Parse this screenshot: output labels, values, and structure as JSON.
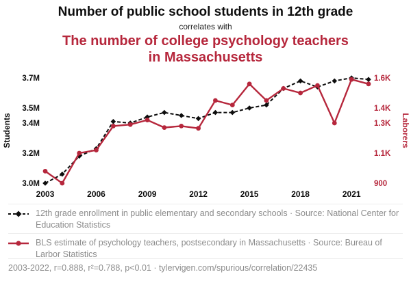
{
  "header": {
    "title_black": "Number of public school students in 12th grade",
    "connector": "correlates with",
    "title_red": "The number of college psychology teachers in Massachusetts"
  },
  "colors": {
    "red": "#b6273c",
    "black": "#0d0d0d",
    "legend_gray": "#8c8c8c"
  },
  "chart_data": {
    "type": "line",
    "x": [
      2003,
      2004,
      2005,
      2006,
      2007,
      2008,
      2009,
      2010,
      2011,
      2012,
      2013,
      2014,
      2015,
      2016,
      2017,
      2018,
      2019,
      2020,
      2021,
      2022
    ],
    "x_ticks": [
      2003,
      2006,
      2009,
      2012,
      2015,
      2018,
      2021
    ],
    "left_axis": {
      "label": "Students",
      "min": 3.0,
      "max": 3.7,
      "ticks": [
        {
          "v": 3.0,
          "label": "3.0M"
        },
        {
          "v": 3.2,
          "label": "3.2M"
        },
        {
          "v": 3.4,
          "label": "3.4M"
        },
        {
          "v": 3.5,
          "label": "3.5M"
        },
        {
          "v": 3.7,
          "label": "3.7M"
        }
      ]
    },
    "right_axis": {
      "label": "Laborers",
      "min": 900,
      "max": 1600,
      "ticks": [
        {
          "v": 900,
          "label": "900"
        },
        {
          "v": 1100,
          "label": "1.1K"
        },
        {
          "v": 1300,
          "label": "1.3K"
        },
        {
          "v": 1400,
          "label": "1.4K"
        },
        {
          "v": 1600,
          "label": "1.6K"
        }
      ]
    },
    "series": [
      {
        "name": "12th grade enrollment in public elementary and secondary schools",
        "axis": "left",
        "style": "dashed-diamond",
        "color": "#0d0d0d",
        "values": [
          3.0,
          3.06,
          3.18,
          3.23,
          3.41,
          3.4,
          3.44,
          3.47,
          3.45,
          3.43,
          3.47,
          3.47,
          3.5,
          3.52,
          3.63,
          3.68,
          3.64,
          3.68,
          3.7,
          3.69
        ]
      },
      {
        "name": "BLS estimate of psychology teachers, postsecondary in Massachusetts",
        "axis": "right",
        "style": "solid-circle",
        "color": "#b6273c",
        "values": [
          980,
          900,
          1100,
          1120,
          1280,
          1290,
          1320,
          1270,
          1280,
          1265,
          1450,
          1420,
          1560,
          1450,
          1530,
          1500,
          1550,
          1300,
          1590,
          1560
        ]
      }
    ]
  },
  "legend": {
    "entries": [
      {
        "text": "12th grade enrollment in public elementary and secondary schools · Source: National Center for Education Statistics"
      },
      {
        "text": "BLS estimate of psychology teachers, postsecondary in Massachusetts · Source: Bureau of Larbor Statistics"
      }
    ]
  },
  "footer": {
    "text": "2003-2022, r=0.888, r²=0.788, p<0.01 · tylervigen.com/spurious/correlation/22435"
  }
}
